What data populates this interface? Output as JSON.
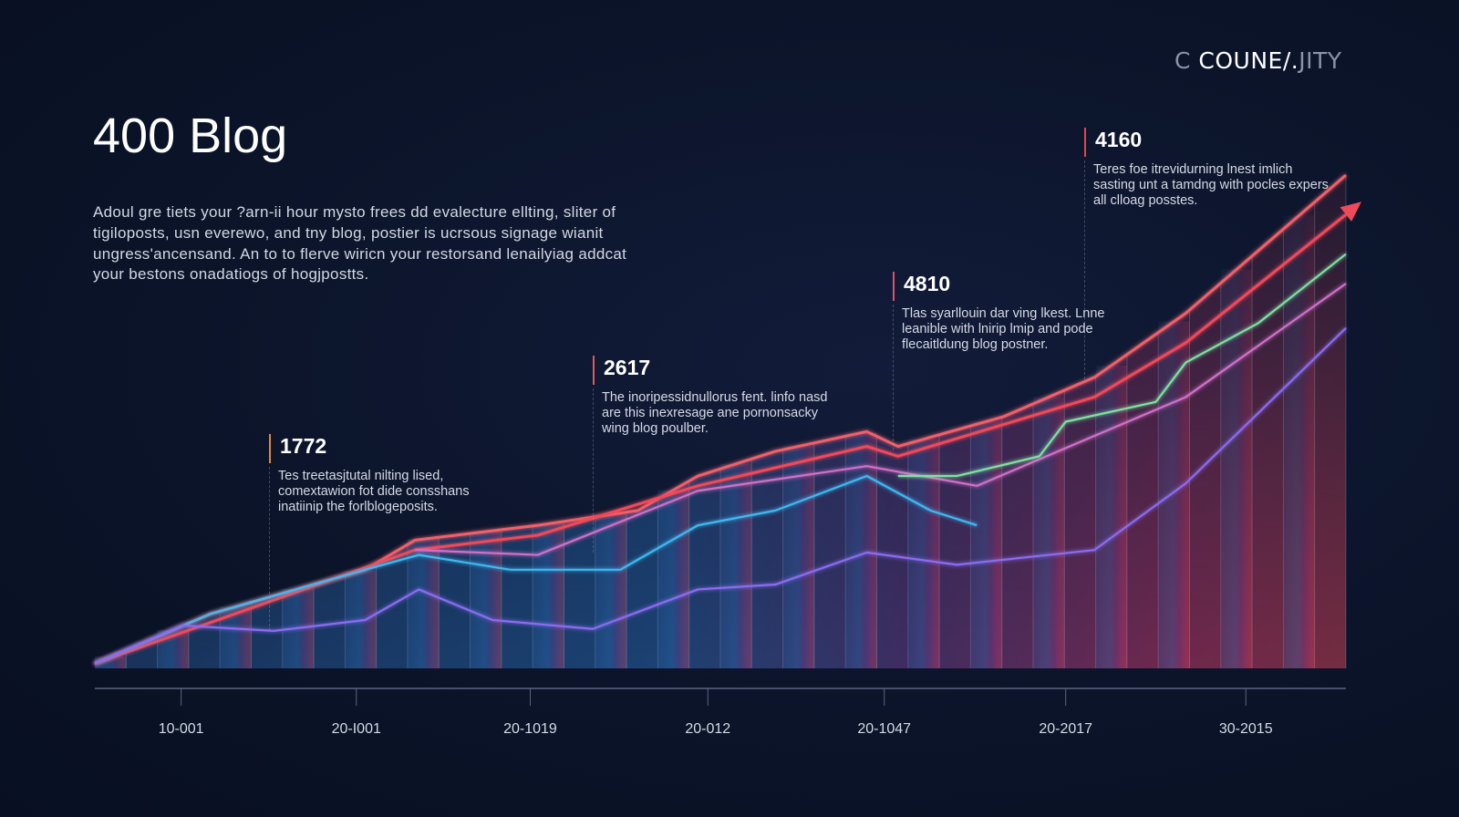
{
  "brand": {
    "prefix": "C",
    "main": "COUNE/.",
    "suffix": "JITY"
  },
  "title": "400 Blog",
  "intro": "Adoul gre tiets your ?arn-ii hour mysto frees dd evalecture ellting, sliter of tigiloposts, usn everewo, and tny blog, postier is ucrsous signage wianit ungress'ancensand. An to to flerve wiricn your restorsand lenailyiag addcat your bestons onadatiogs of hogjpostts.",
  "annotations": [
    {
      "value": "1772",
      "text": "Tes treetasjtutal nilting lised, comextawion fot dide consshans inatiinip the forlblogeposits.",
      "color": "#e0873c"
    },
    {
      "value": "2617",
      "text": "The inoripessidnullorus fent. linfo nasd are this inexresage ane pornonsacky wing blog poulber.",
      "color": "#e05a5a"
    },
    {
      "value": "4810",
      "text": "Tlas syarllouin dar ving lkest. Lnne leanible with lnirip lmip and pode flecaitldung blog postner.",
      "color": "#e0506a"
    },
    {
      "value": "4160",
      "text": "Teres foe itrevidurning lnest imlich sasting unt a tamdng with pocles expers all clloag posstes.",
      "color": "#e04848"
    }
  ],
  "chart_data": {
    "type": "line",
    "title": "",
    "xlabel": "",
    "ylabel": "",
    "xlim": [
      0,
      100
    ],
    "ylim": [
      0,
      100
    ],
    "grid": false,
    "legend": "none",
    "tick_labels": [
      "10-001",
      "20-I001",
      "20-1019",
      "20-012",
      "20-1047",
      "20-2017",
      "30-2015"
    ],
    "tick_positions": [
      6.9,
      20.9,
      34.8,
      49,
      63.1,
      77.6,
      92
    ],
    "series": [
      {
        "color": "#f0606a",
        "points": [
          [
            0,
            1
          ],
          [
            9.2,
            11
          ],
          [
            21.6,
            20
          ],
          [
            25.6,
            26
          ],
          [
            35.4,
            29
          ],
          [
            43.4,
            32
          ],
          [
            48.2,
            39
          ],
          [
            54.4,
            44
          ],
          [
            61.7,
            48
          ],
          [
            64.2,
            45
          ],
          [
            72.6,
            51
          ],
          [
            79.9,
            59
          ],
          [
            87.2,
            72
          ],
          [
            100,
            100
          ]
        ]
      },
      {
        "color": "#ef4a5a",
        "arrow": true,
        "points": [
          [
            0,
            1
          ],
          [
            25.6,
            24
          ],
          [
            35.4,
            27
          ],
          [
            48.2,
            37
          ],
          [
            61.7,
            45
          ],
          [
            64.2,
            43
          ],
          [
            79.9,
            55
          ],
          [
            87.2,
            66
          ],
          [
            100,
            92
          ]
        ]
      },
      {
        "color": "#d070c8",
        "points": [
          [
            25.6,
            24
          ],
          [
            35.4,
            23
          ],
          [
            48.2,
            36
          ],
          [
            61.7,
            41
          ],
          [
            70.5,
            37
          ],
          [
            87.2,
            55
          ],
          [
            100,
            78
          ]
        ]
      },
      {
        "color": "#3fb8f0",
        "points": [
          [
            0,
            1
          ],
          [
            9.2,
            11
          ],
          [
            21.6,
            20
          ],
          [
            25.9,
            23
          ],
          [
            33.2,
            20
          ],
          [
            42,
            20
          ],
          [
            48.2,
            29
          ],
          [
            54.4,
            32
          ],
          [
            61.7,
            39
          ],
          [
            66.8,
            32
          ],
          [
            70.5,
            29
          ]
        ]
      },
      {
        "color": "#8a6cf0",
        "points": [
          [
            0,
            1
          ],
          [
            7,
            8.7
          ],
          [
            14.3,
            7.6
          ],
          [
            21.6,
            9.8
          ],
          [
            25.9,
            16
          ],
          [
            31.8,
            9.8
          ],
          [
            39.8,
            8
          ],
          [
            48.2,
            16
          ],
          [
            54.4,
            17
          ],
          [
            61.7,
            23.5
          ],
          [
            68.9,
            21
          ],
          [
            79.9,
            24
          ],
          [
            87.2,
            37.5
          ],
          [
            100,
            69
          ]
        ]
      },
      {
        "color": "#7fe0a0",
        "points": [
          [
            64.2,
            39
          ],
          [
            68.9,
            39
          ],
          [
            75.5,
            43
          ],
          [
            77.6,
            50
          ],
          [
            84.8,
            54
          ],
          [
            87.2,
            62
          ],
          [
            93,
            70
          ],
          [
            100,
            84
          ]
        ]
      }
    ]
  }
}
